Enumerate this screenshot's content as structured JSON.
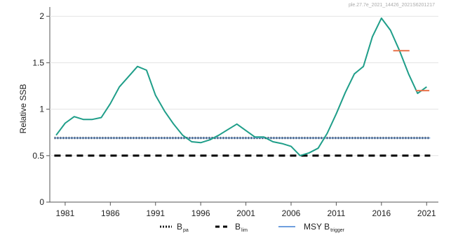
{
  "header": {
    "id_text": "ple.27.7e_2021_14426_2021S6201217"
  },
  "chart_data": {
    "type": "line",
    "title": "",
    "xlabel": "",
    "ylabel": "Relative SSB",
    "xlim": [
      1979.3,
      2022.3
    ],
    "ylim": [
      0,
      2.1
    ],
    "x_ticks": [
      1981,
      1986,
      1991,
      1996,
      2001,
      2006,
      2011,
      2016,
      2021
    ],
    "y_ticks": [
      0,
      0.5,
      1,
      1.5,
      2
    ],
    "y_tick_labels": [
      "0",
      "0.5",
      "1",
      "1.5",
      "2"
    ],
    "grid": "horizontal",
    "legend_position": "bottom",
    "series": [
      {
        "name": "",
        "color": "#1f9e89",
        "x": [
          1980,
          1981,
          1982,
          1983,
          1984,
          1985,
          1986,
          1987,
          1988,
          1989,
          1990,
          1991,
          1992,
          1993,
          1994,
          1995,
          1996,
          1997,
          1998,
          1999,
          2000,
          2001,
          2002,
          2003,
          2004,
          2005,
          2006,
          2007,
          2008,
          2009,
          2010,
          2011,
          2012,
          2013,
          2014,
          2015,
          2016,
          2017,
          2018,
          2019,
          2020,
          2021
        ],
        "y": [
          0.72,
          0.85,
          0.92,
          0.89,
          0.89,
          0.91,
          1.06,
          1.24,
          1.35,
          1.46,
          1.42,
          1.15,
          0.98,
          0.84,
          0.72,
          0.65,
          0.64,
          0.67,
          0.72,
          0.78,
          0.84,
          0.77,
          0.7,
          0.7,
          0.65,
          0.63,
          0.6,
          0.5,
          0.53,
          0.58,
          0.74,
          0.95,
          1.18,
          1.38,
          1.46,
          1.78,
          1.98,
          1.85,
          1.63,
          1.38,
          1.17,
          1.24
        ]
      }
    ],
    "reference_lines": [
      {
        "name": "B_pa",
        "value": 0.69,
        "style": "dotted",
        "color": "#1a1a1a"
      },
      {
        "name": "B_lim",
        "value": 0.5,
        "style": "dashed",
        "color": "#000000"
      },
      {
        "name": "MSY B_trigger",
        "value": 0.69,
        "style": "solid",
        "color": "#6f9fde"
      }
    ],
    "markers": [
      {
        "x": [
          2017.3,
          2019.1
        ],
        "y": 1.63,
        "color": "#e8724a"
      },
      {
        "x": [
          2019.8,
          2021.3
        ],
        "y": 1.2,
        "color": "#e8724a"
      }
    ],
    "legend": [
      {
        "main": "B",
        "sub": "pa",
        "style": "dotted"
      },
      {
        "main": "B",
        "sub": "lim",
        "style": "dashed"
      },
      {
        "main": "MSY B",
        "sub": "trigger",
        "style": "solid"
      }
    ]
  }
}
